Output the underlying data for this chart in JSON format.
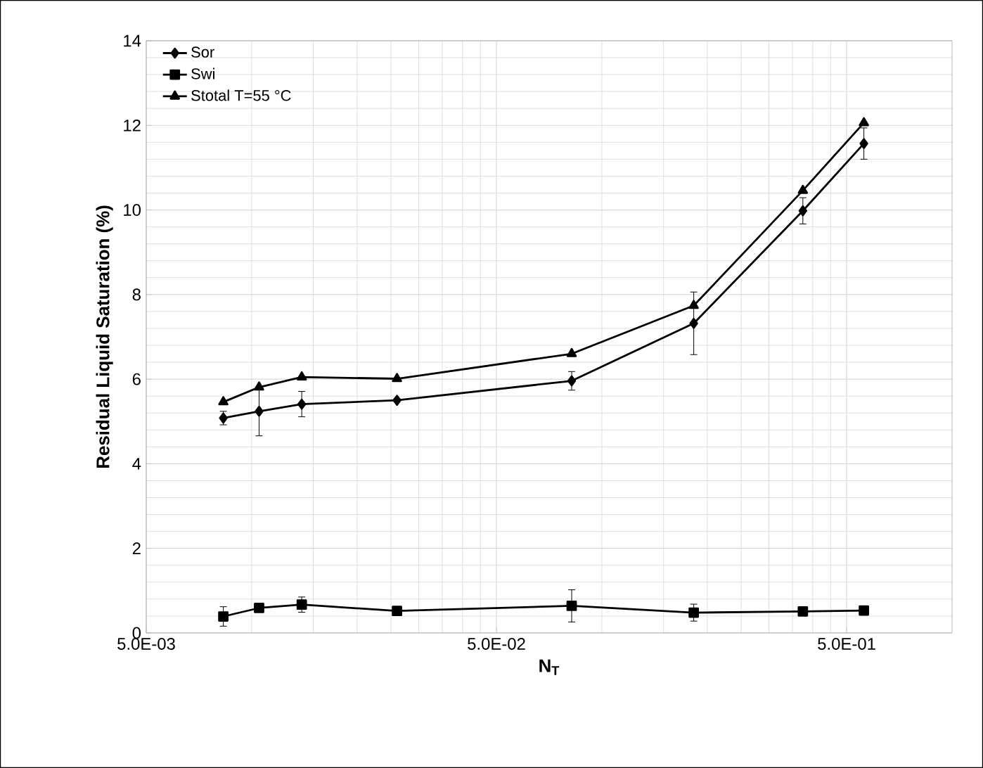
{
  "chart_data": {
    "type": "line",
    "xlabel": "N$_{T}$",
    "ylabel": "Residual Liquid Saturation (%)",
    "log": "x",
    "xlim": [
      0.005,
      1
    ],
    "ylim": [
      0,
      14
    ],
    "xticks": [
      {
        "value": 0.005,
        "label": "5.0E-03"
      },
      {
        "value": 0.05,
        "label": "5.0E-02"
      },
      {
        "value": 0.5,
        "label": "5.0E-01"
      }
    ],
    "yticks": [
      0,
      2,
      4,
      6,
      8,
      10,
      12,
      14
    ],
    "grid": true,
    "legend": "top left",
    "line_style": "solid",
    "x": [
      0.0083,
      0.0105,
      0.0139,
      0.026,
      0.082,
      0.183,
      0.375,
      0.56
    ],
    "series": [
      {
        "name": "Sor",
        "color": "#000000",
        "marker": "diamond",
        "values": [
          5.08,
          5.24,
          5.41,
          5.5,
          5.96,
          7.32,
          9.98,
          11.57
        ],
        "errors": [
          0.16,
          0.58,
          0.3,
          null,
          0.22,
          0.74,
          0.31,
          0.37
        ]
      },
      {
        "name": "Swi",
        "color": "#000000",
        "marker": "square",
        "values": [
          0.39,
          0.59,
          0.67,
          0.52,
          0.64,
          0.48,
          0.51,
          0.53
        ],
        "errors": [
          0.23,
          0.1,
          0.18,
          null,
          0.38,
          0.2,
          null,
          null
        ]
      },
      {
        "name": "Stotal T=55 °C",
        "color": "#000000",
        "marker": "triangle",
        "values": [
          5.46,
          5.81,
          6.05,
          6.01,
          6.6,
          7.74,
          10.46,
          12.06
        ]
      }
    ]
  }
}
